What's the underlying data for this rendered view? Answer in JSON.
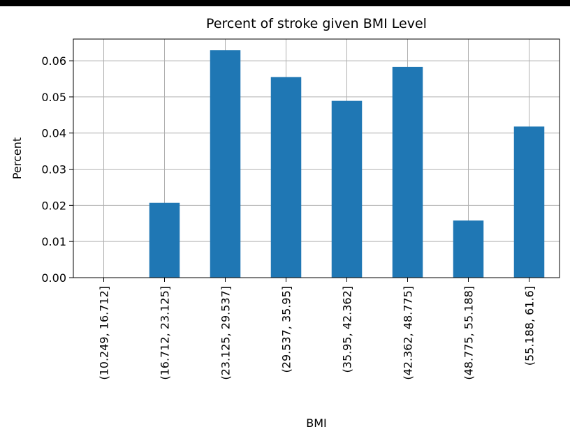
{
  "chart_data": {
    "type": "bar",
    "title": "Percent of stroke given BMI Level",
    "xlabel": "BMI",
    "ylabel": "Percent",
    "categories": [
      "(10.249, 16.712]",
      "(16.712, 23.125]",
      "(23.125, 29.537]",
      "(29.537, 35.95]",
      "(35.95, 42.362]",
      "(42.362, 48.775]",
      "(48.775, 55.188]",
      "(55.188, 61.6]"
    ],
    "values": [
      0.0,
      0.0207,
      0.0629,
      0.0555,
      0.0489,
      0.0583,
      0.0158,
      0.0418
    ],
    "ylim": [
      0,
      0.066
    ],
    "yticks": [
      0.0,
      0.01,
      0.02,
      0.03,
      0.04,
      0.05,
      0.06
    ],
    "ytick_labels": [
      "0.00",
      "0.01",
      "0.02",
      "0.03",
      "0.04",
      "0.05",
      "0.06"
    ],
    "grid": true,
    "bar_color": "#1f77b4",
    "grid_color": "#b0b0b0"
  }
}
